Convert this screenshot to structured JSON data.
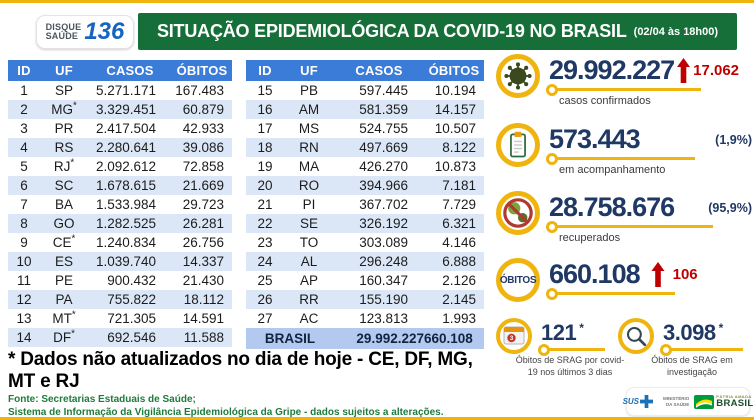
{
  "header": {
    "logo": {
      "line1": "DISQUE",
      "line2": "SAÚDE",
      "number": "136"
    },
    "title": "SITUAÇÃO EPIDEMIOLÓGICA DA COVID-19 NO BRASIL",
    "title_suffix": "(02/04 às 18h00)"
  },
  "table": {
    "columns": [
      "ID",
      "UF",
      "CASOS",
      "ÓBITOS"
    ],
    "left_rows": [
      [
        "1",
        "SP",
        "5.271.171",
        "167.483"
      ],
      [
        "2",
        "MG*",
        "3.329.451",
        "60.879"
      ],
      [
        "3",
        "PR",
        "2.417.504",
        "42.933"
      ],
      [
        "4",
        "RS",
        "2.280.641",
        "39.086"
      ],
      [
        "5",
        "RJ*",
        "2.092.612",
        "72.858"
      ],
      [
        "6",
        "SC",
        "1.678.615",
        "21.669"
      ],
      [
        "7",
        "BA",
        "1.533.984",
        "29.723"
      ],
      [
        "8",
        "GO",
        "1.282.525",
        "26.281"
      ],
      [
        "9",
        "CE*",
        "1.240.834",
        "26.756"
      ],
      [
        "10",
        "ES",
        "1.039.740",
        "14.337"
      ],
      [
        "11",
        "PE",
        "900.432",
        "21.430"
      ],
      [
        "12",
        "PA",
        "755.822",
        "18.112"
      ],
      [
        "13",
        "MT *",
        "721.305",
        "14.591"
      ],
      [
        "14",
        "DF *",
        "692.546",
        "11.588"
      ]
    ],
    "right_rows": [
      [
        "15",
        "PB",
        "597.445",
        "10.194"
      ],
      [
        "16",
        "AM",
        "581.359",
        "14.157"
      ],
      [
        "17",
        "MS",
        "524.755",
        "10.507"
      ],
      [
        "18",
        "RN",
        "497.669",
        "8.122"
      ],
      [
        "19",
        "MA",
        "426.270",
        "10.873"
      ],
      [
        "20",
        "RO",
        "394.966",
        "7.181"
      ],
      [
        "21",
        "PI",
        "367.702",
        "7.729"
      ],
      [
        "22",
        "SE",
        "326.192",
        "6.321"
      ],
      [
        "23",
        "TO",
        "303.089",
        "4.146"
      ],
      [
        "24",
        "AL",
        "296.248",
        "6.888"
      ],
      [
        "25",
        "AP",
        "160.347",
        "2.126"
      ],
      [
        "26",
        "RR",
        "155.190",
        "2.145"
      ],
      [
        "27",
        "AC",
        "123.813",
        "1.993"
      ]
    ],
    "total_row": {
      "label": "BRASIL",
      "casos": "29.992.227",
      "obitos": "660.108"
    }
  },
  "stats": {
    "confirmed": {
      "value": "29.992.227",
      "delta": "17.062",
      "label": "casos confirmados",
      "icon": "virus-icon"
    },
    "monitoring": {
      "value": "573.443",
      "pct": "(1,9%)",
      "label": "em acompanhamento",
      "icon": "clipboard-icon"
    },
    "recovered": {
      "value": "28.758.676",
      "pct": "(95,9%)",
      "label": "recuperados",
      "icon": "no-virus-icon"
    },
    "deaths": {
      "badge": "ÓBITOS",
      "value": "660.108",
      "delta": "106"
    },
    "srag_recent": {
      "value": "121",
      "asterisk": "*",
      "label": "Óbitos de SRAG por covid-19 nos últimos 3 dias",
      "icon": "calendar-icon"
    },
    "srag_investigation": {
      "value": "3.098",
      "asterisk": "*",
      "label": "Óbitos de SRAG em investigação",
      "icon": "search-icon"
    }
  },
  "footnote": "* Dados não atualizados no dia de hoje - CE, DF, MG, MT e RJ",
  "source": {
    "line1": "Fonte: Secretarias Estaduais de Saúde;",
    "line2": "Sistema de Informação da Vigilância Epidemiológica da Gripe - dados sujeitos a alterações."
  },
  "footer_logos": {
    "sus": "SUS",
    "ministry": "MINISTÉRIO DA SAÚDE",
    "brasil_top": "PÁTRIA AMADA",
    "brasil": "BRASIL"
  },
  "colors": {
    "yellow": "#EFB40E",
    "green": "#166F38",
    "blue": "#3C7CD9",
    "rowalt": "#DBE7F7",
    "totalrow": "#B4C9EF",
    "navy": "#1F3864",
    "red": "#C00000",
    "srcgreen": "#1F7A3C"
  },
  "chart_data": {
    "type": "table",
    "title": "SITUAÇÃO EPIDEMIOLÓGICA DA COVID-19 NO BRASIL (02/04 às 18h00)",
    "columns": [
      "ID",
      "UF",
      "CASOS",
      "ÓBITOS"
    ],
    "rows": [
      [
        1,
        "SP",
        5271171,
        167483
      ],
      [
        2,
        "MG",
        3329451,
        60879
      ],
      [
        3,
        "PR",
        2417504,
        42933
      ],
      [
        4,
        "RS",
        2280641,
        39086
      ],
      [
        5,
        "RJ",
        2092612,
        72858
      ],
      [
        6,
        "SC",
        1678615,
        21669
      ],
      [
        7,
        "BA",
        1533984,
        29723
      ],
      [
        8,
        "GO",
        1282525,
        26281
      ],
      [
        9,
        "CE",
        1240834,
        26756
      ],
      [
        10,
        "ES",
        1039740,
        14337
      ],
      [
        11,
        "PE",
        900432,
        21430
      ],
      [
        12,
        "PA",
        755822,
        18112
      ],
      [
        13,
        "MT",
        721305,
        14591
      ],
      [
        14,
        "DF",
        692546,
        11588
      ],
      [
        15,
        "PB",
        597445,
        10194
      ],
      [
        16,
        "AM",
        581359,
        14157
      ],
      [
        17,
        "MS",
        524755,
        10507
      ],
      [
        18,
        "RN",
        497669,
        8122
      ],
      [
        19,
        "MA",
        426270,
        10873
      ],
      [
        20,
        "RO",
        394966,
        7181
      ],
      [
        21,
        "PI",
        367702,
        7729
      ],
      [
        22,
        "SE",
        326192,
        6321
      ],
      [
        23,
        "TO",
        303089,
        4146
      ],
      [
        24,
        "AL",
        296248,
        6888
      ],
      [
        25,
        "AP",
        160347,
        2126
      ],
      [
        26,
        "RR",
        155190,
        2145
      ],
      [
        27,
        "AC",
        123813,
        1993
      ]
    ],
    "total": {
      "label": "BRASIL",
      "casos": 29992227,
      "obitos": 660108
    },
    "summary": {
      "casos_confirmados": 29992227,
      "casos_novos": 17062,
      "em_acompanhamento": 573443,
      "em_acompanhamento_pct": "1,9%",
      "recuperados": 28758676,
      "recuperados_pct": "95,9%",
      "obitos": 660108,
      "obitos_novos": 106,
      "obitos_srag_ultimos_3_dias": 121,
      "obitos_srag_em_investigacao": 3098,
      "estados_nao_atualizados": [
        "CE",
        "DF",
        "MG",
        "MT",
        "RJ"
      ]
    }
  }
}
